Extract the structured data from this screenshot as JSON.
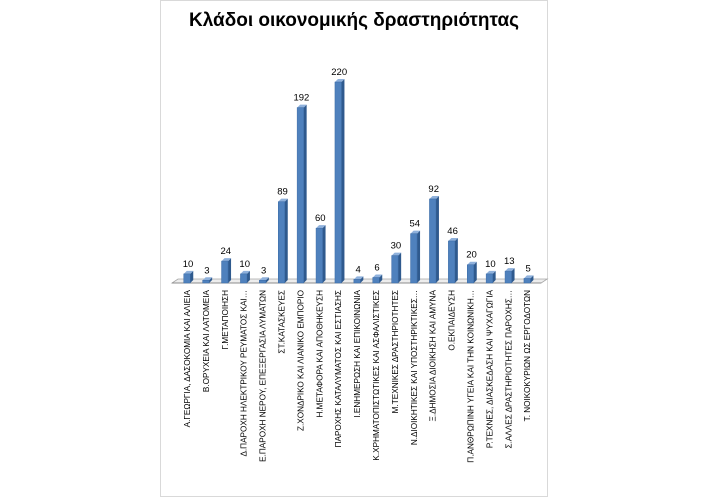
{
  "chart_data": {
    "type": "bar",
    "title": "Κλάδοι οικονομικής δραστηριότητας",
    "xlabel": "",
    "ylabel": "",
    "ylim": [
      0,
      220
    ],
    "grid": false,
    "legend": "none",
    "bar_color": "#4f81bd",
    "categories": [
      "Α.ΓΕΩΡΓΙΑ, ΔΑΣΟΚΟΜΙΑ ΚΑΙ ΑΛΙΕΙΑ",
      "Β.ΟΡΥΧΕΙΑ ΚΑΙ ΛΑΤΟΜΕΙΑ",
      "Γ.ΜΕΤΑΠΟΙΗΣΗ",
      "Δ.ΠΑΡΟΧΗ ΗΛΕΚΤΡΙΚΟΥ ΡΕΥΜΑΤΟΣ ΚΑΙ…",
      "Ε.ΠΑΡΟΧΗ ΝΕΡΟΥ, ΕΠΕΞΕΡΓΑΣΙΑ ΛΥΜΑΤΩΝ",
      "ΣΤ.ΚΑΤΑΣΚΕΥΕΣ",
      "Ζ.ΧΟΝΔΡΙΚΟ ΚΑΙ ΛΙΑΝΙΚΟ ΕΜΠΟΡΙΟ",
      "Η.ΜΕΤΑΦΟΡΑ ΚΑΙ ΑΠΟΘΗΚΕΥΣΗ",
      "ΠΑΡΟΧΗΣ ΚΑΤΑΛΥΜΑΤΟΣ ΚΑΙ ΕΣΤΙΑΣΗΣ",
      "Ι.ΕΝΗΜΕΡΩΣΗ ΚΑΙ ΕΠΙΚΟΙΝΩΝΙΑ",
      "Κ.ΧΡΗΜΑΤΟΠΙΣΤΩΤΙΚΕΣ ΚΑΙ ΑΣΦΑΛΙΣΤΙΚΕΣ",
      "Μ.ΤΕΧΝΙΚΕΣ ΔΡΑΣΤΗΡΙΟΤΗΤΕΣ",
      "Ν.ΔΙΟΙΚΗΤΙΚΕΣ ΚΑΙ ΥΠΟΣΤΗΡΙΚΤΙΚΕΣ…",
      "Ξ.ΔΗΜΟΣΙΑ ΔΙΟΙΚΗΣΗ ΚΑΙ ΑΜΥΝΑ",
      "Ο.ΕΚΠΑΙΔΕΥΣΗ",
      "Π.ΑΝΘΡΩΠΙΝΗ ΥΓΕΙΑ ΚΑΙ ΤΗΝ ΚΟΙΝΩΝΙΚΗ…",
      "Ρ.ΤΕΧΝΕΣ, ΔΙΑΣΚΕΔΑΣΗ ΚΑΙ ΨΥΧΑΓΩΓΙΑ",
      "Σ.ΑΛΛΕΣ ΔΡΑΣΤΗΡΙΟΤΗΤΕΣ ΠΑΡΟΧΗΣ…",
      "Τ. ΝΟΙΚΟΚΥΡΙΩΝ ΩΣ ΕΡΓΟΔΟΤΩΝ"
    ],
    "values": [
      10,
      3,
      24,
      10,
      3,
      89,
      192,
      60,
      220,
      4,
      6,
      30,
      54,
      92,
      46,
      20,
      10,
      13,
      5
    ]
  }
}
